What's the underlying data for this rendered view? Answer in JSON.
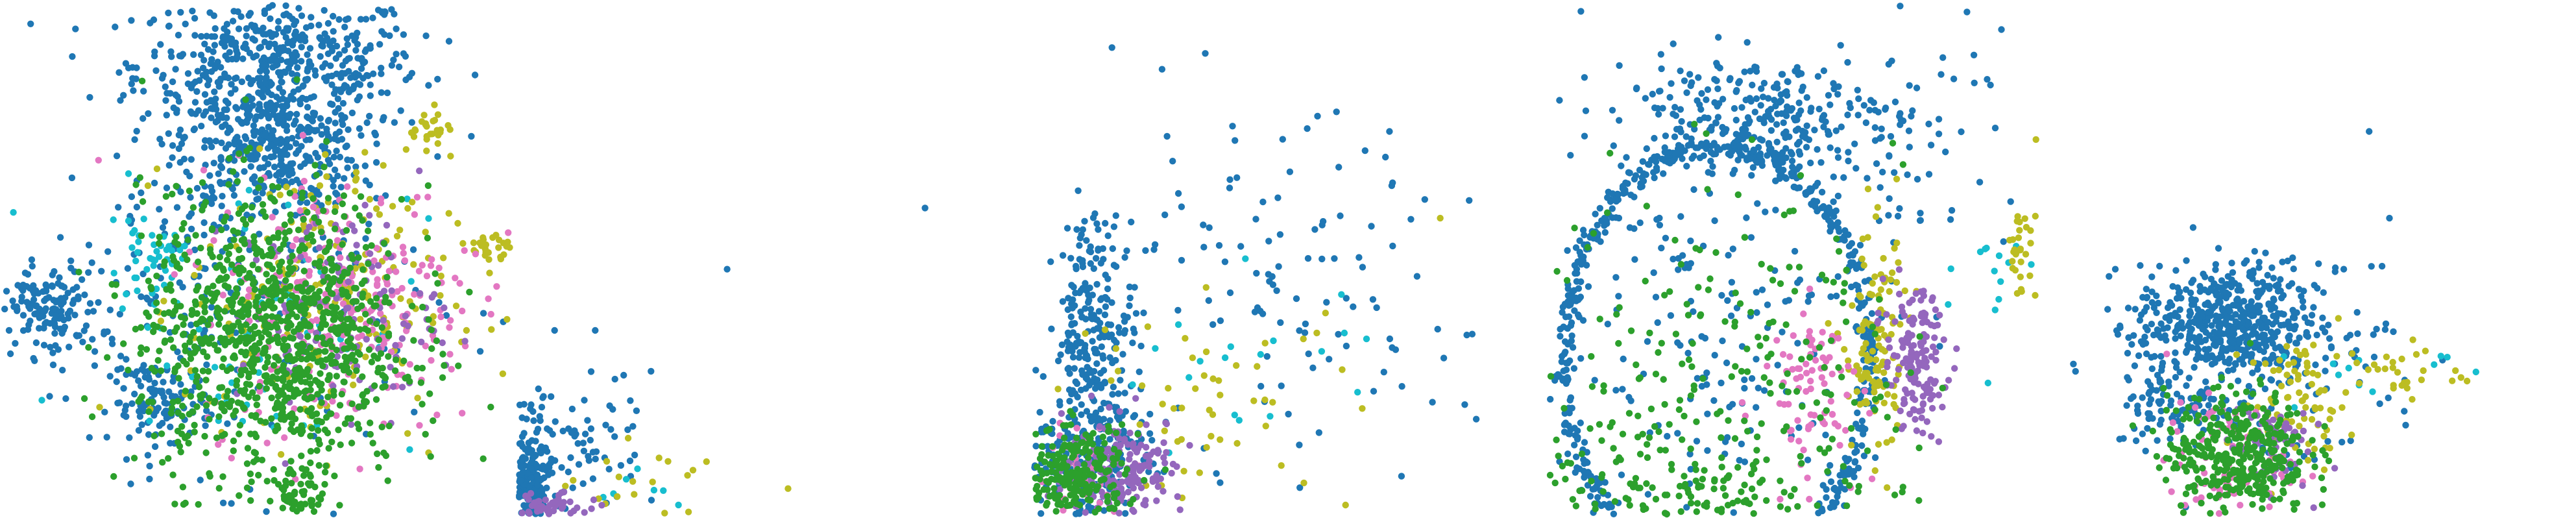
{
  "colors": {
    "background": "#ffffff",
    "blue": "#1f77b4",
    "green": "#2ca02c",
    "purple": "#9467bd",
    "pink": "#e377c2",
    "olive": "#bcbd22",
    "cyan": "#17becf"
  },
  "chart_data": [
    {
      "type": "scatter",
      "title": "",
      "xlabel": "",
      "ylabel": "",
      "xlim": [
        0,
        1
      ],
      "ylim": [
        0,
        1
      ],
      "grid": false,
      "axes_visible": false,
      "legend": "none",
      "clusters": [
        {
          "color": "blue",
          "center": [
            0.54,
            0.88
          ],
          "spread": [
            0.14,
            0.07
          ],
          "count": 520
        },
        {
          "color": "blue",
          "center": [
            0.52,
            0.72
          ],
          "spread": [
            0.09,
            0.06
          ],
          "count": 320
        },
        {
          "color": "blue",
          "center": [
            0.09,
            0.4
          ],
          "spread": [
            0.05,
            0.045
          ],
          "count": 150
        },
        {
          "color": "blue",
          "center": [
            0.31,
            0.22
          ],
          "spread": [
            0.05,
            0.04
          ],
          "count": 110
        },
        {
          "color": "blue",
          "center": [
            0.45,
            0.45
          ],
          "spread": [
            0.18,
            0.18
          ],
          "count": 260
        },
        {
          "color": "green",
          "center": [
            0.53,
            0.35
          ],
          "spread": [
            0.13,
            0.14
          ],
          "count": 1050
        },
        {
          "color": "green",
          "center": [
            0.58,
            0.04
          ],
          "spread": [
            0.03,
            0.03
          ],
          "count": 60
        },
        {
          "color": "pink",
          "center": [
            0.66,
            0.42
          ],
          "spread": [
            0.14,
            0.13
          ],
          "count": 260
        },
        {
          "color": "purple",
          "center": [
            0.66,
            0.4
          ],
          "spread": [
            0.1,
            0.1
          ],
          "count": 140
        },
        {
          "color": "olive",
          "center": [
            0.62,
            0.42
          ],
          "spread": [
            0.13,
            0.14
          ],
          "count": 190
        },
        {
          "color": "olive",
          "center": [
            0.84,
            0.76
          ],
          "spread": [
            0.02,
            0.02
          ],
          "count": 25
        },
        {
          "color": "olive",
          "center": [
            0.97,
            0.52
          ],
          "spread": [
            0.025,
            0.02
          ],
          "count": 30
        },
        {
          "color": "cyan",
          "center": [
            0.29,
            0.5
          ],
          "spread": [
            0.03,
            0.03
          ],
          "count": 40
        },
        {
          "color": "cyan",
          "center": [
            0.5,
            0.4
          ],
          "spread": [
            0.16,
            0.15
          ],
          "count": 60
        }
      ]
    },
    {
      "type": "scatter",
      "title": "",
      "xlabel": "",
      "ylabel": "",
      "xlim": [
        0,
        1
      ],
      "ylim": [
        0,
        1
      ],
      "grid": false,
      "axes_visible": false,
      "legend": "none",
      "clusters": [
        {
          "color": "blue",
          "center": [
            0.02,
            0.05
          ],
          "spread": [
            0.02,
            0.06
          ],
          "count": 220
        },
        {
          "color": "blue",
          "center": [
            0.1,
            0.12
          ],
          "spread": [
            0.07,
            0.08
          ],
          "count": 90
        },
        {
          "color": "purple",
          "center": [
            0.06,
            0.01
          ],
          "spread": [
            0.04,
            0.015
          ],
          "count": 60
        },
        {
          "color": "olive",
          "center": [
            0.25,
            0.05
          ],
          "spread": [
            0.07,
            0.04
          ],
          "count": 20
        },
        {
          "color": "cyan",
          "center": [
            0.22,
            0.04
          ],
          "spread": [
            0.05,
            0.03
          ],
          "count": 8
        }
      ],
      "points": [
        {
          "color": "blue",
          "x": 0.41,
          "y": 0.48
        },
        {
          "color": "blue",
          "x": 0.8,
          "y": 0.6
        },
        {
          "color": "blue",
          "x": 0.07,
          "y": 0.36
        },
        {
          "color": "blue",
          "x": 0.15,
          "y": 0.36
        },
        {
          "color": "blue",
          "x": 0.26,
          "y": 0.28
        },
        {
          "color": "olive",
          "x": 0.53,
          "y": 0.05
        }
      ]
    },
    {
      "type": "scatter",
      "title": "",
      "xlabel": "",
      "ylabel": "",
      "xlim": [
        0,
        1
      ],
      "ylim": [
        0,
        1
      ],
      "grid": false,
      "axes_visible": false,
      "legend": "none",
      "clusters": [
        {
          "color": "blue",
          "center": [
            0.12,
            0.35
          ],
          "spread": [
            0.04,
            0.12
          ],
          "count": 260
        },
        {
          "color": "blue",
          "center": [
            0.09,
            0.1
          ],
          "spread": [
            0.07,
            0.06
          ],
          "count": 200
        },
        {
          "color": "blue",
          "center": [
            0.45,
            0.4
          ],
          "spread": [
            0.2,
            0.18
          ],
          "count": 120
        },
        {
          "color": "green",
          "center": [
            0.08,
            0.07
          ],
          "spread": [
            0.05,
            0.05
          ],
          "count": 260
        },
        {
          "color": "purple",
          "center": [
            0.18,
            0.09
          ],
          "spread": [
            0.06,
            0.05
          ],
          "count": 170
        },
        {
          "color": "pink",
          "center": [
            0.1,
            0.08
          ],
          "spread": [
            0.05,
            0.05
          ],
          "count": 50
        },
        {
          "color": "olive",
          "center": [
            0.35,
            0.22
          ],
          "spread": [
            0.14,
            0.1
          ],
          "count": 55
        },
        {
          "color": "cyan",
          "center": [
            0.4,
            0.25
          ],
          "spread": [
            0.15,
            0.12
          ],
          "count": 20
        }
      ],
      "points": [
        {
          "color": "blue",
          "x": 0.7,
          "y": 0.75
        },
        {
          "color": "blue",
          "x": 0.6,
          "y": 0.68
        },
        {
          "color": "blue",
          "x": 0.48,
          "y": 0.62
        },
        {
          "color": "olive",
          "x": 0.8,
          "y": 0.58
        }
      ]
    },
    {
      "type": "scatter",
      "title": "",
      "xlabel": "",
      "ylabel": "",
      "xlim": [
        0,
        1
      ],
      "ylim": [
        0,
        1
      ],
      "grid": false,
      "axes_visible": false,
      "legend": "none",
      "ring": {
        "color": "blue",
        "center": [
          0.33,
          0.3
        ],
        "radius": [
          0.3,
          0.42
        ],
        "count": 620
      },
      "clusters": [
        {
          "color": "blue",
          "center": [
            0.4,
            0.78
          ],
          "spread": [
            0.14,
            0.06
          ],
          "count": 280
        },
        {
          "color": "blue",
          "center": [
            0.33,
            0.33
          ],
          "spread": [
            0.17,
            0.22
          ],
          "count": 200
        },
        {
          "color": "blue",
          "center": [
            0.7,
            0.75
          ],
          "spread": [
            0.1,
            0.12
          ],
          "count": 60
        },
        {
          "color": "green",
          "center": [
            0.33,
            0.25
          ],
          "spread": [
            0.18,
            0.2
          ],
          "count": 260
        },
        {
          "color": "green",
          "center": [
            0.33,
            0.05
          ],
          "spread": [
            0.2,
            0.03
          ],
          "count": 90
        },
        {
          "color": "purple",
          "center": [
            0.72,
            0.3
          ],
          "spread": [
            0.03,
            0.07
          ],
          "count": 150
        },
        {
          "color": "pink",
          "center": [
            0.52,
            0.25
          ],
          "spread": [
            0.05,
            0.08
          ],
          "count": 80
        },
        {
          "color": "olive",
          "center": [
            0.64,
            0.33
          ],
          "spread": [
            0.03,
            0.12
          ],
          "count": 120
        },
        {
          "color": "olive",
          "center": [
            0.93,
            0.52
          ],
          "spread": [
            0.015,
            0.05
          ],
          "count": 30
        },
        {
          "color": "cyan",
          "center": [
            0.88,
            0.45
          ],
          "spread": [
            0.04,
            0.08
          ],
          "count": 14
        }
      ]
    },
    {
      "type": "scatter",
      "title": "",
      "xlabel": "",
      "ylabel": "",
      "xlim": [
        0,
        1
      ],
      "ylim": [
        0,
        1
      ],
      "grid": false,
      "axes_visible": false,
      "legend": "none",
      "clusters": [
        {
          "color": "blue",
          "center": [
            0.32,
            0.37
          ],
          "spread": [
            0.09,
            0.06
          ],
          "count": 520
        },
        {
          "color": "blue",
          "center": [
            0.22,
            0.21
          ],
          "spread": [
            0.06,
            0.04
          ],
          "count": 90
        },
        {
          "color": "blue",
          "center": [
            0.45,
            0.3
          ],
          "spread": [
            0.14,
            0.12
          ],
          "count": 80
        },
        {
          "color": "green",
          "center": [
            0.34,
            0.12
          ],
          "spread": [
            0.07,
            0.06
          ],
          "count": 380
        },
        {
          "color": "pink",
          "center": [
            0.32,
            0.1
          ],
          "spread": [
            0.06,
            0.06
          ],
          "count": 80
        },
        {
          "color": "purple",
          "center": [
            0.4,
            0.14
          ],
          "spread": [
            0.04,
            0.05
          ],
          "count": 60
        },
        {
          "color": "olive",
          "center": [
            0.46,
            0.22
          ],
          "spread": [
            0.05,
            0.06
          ],
          "count": 80
        },
        {
          "color": "olive",
          "center": [
            0.65,
            0.28
          ],
          "spread": [
            0.07,
            0.03
          ],
          "count": 30
        },
        {
          "color": "cyan",
          "center": [
            0.6,
            0.28
          ],
          "spread": [
            0.08,
            0.04
          ],
          "count": 12
        }
      ],
      "points": [
        {
          "color": "blue",
          "x": 0.6,
          "y": 0.75
        },
        {
          "color": "blue",
          "x": 0.64,
          "y": 0.58
        },
        {
          "color": "blue",
          "x": 0.55,
          "y": 0.48
        }
      ]
    }
  ]
}
